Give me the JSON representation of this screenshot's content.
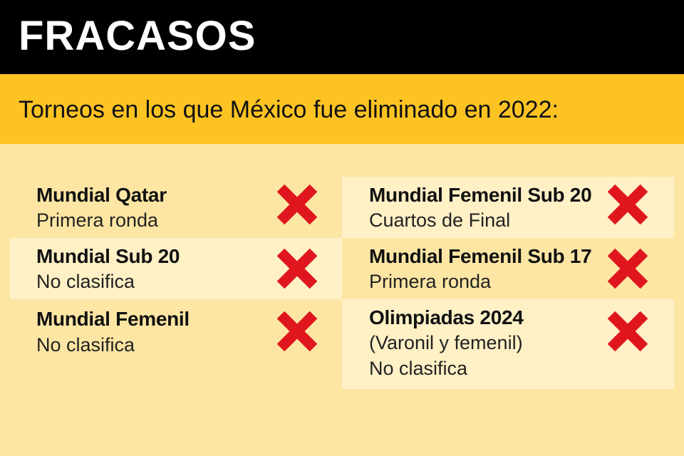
{
  "header": {
    "title": "FRACASOS"
  },
  "subheader": {
    "text": "Torneos en los que México fue eliminado en 2022:"
  },
  "tournaments": [
    {
      "name": "Mundial Qatar",
      "result": "Primera ronda"
    },
    {
      "name": "Mundial Sub 20",
      "result": "No clasifica"
    },
    {
      "name": "Mundial Femenil",
      "result": "No clasifica"
    },
    {
      "name": "Mundial Femenil Sub 20",
      "result": "Cuartos de Final"
    },
    {
      "name": "Mundial Femenil Sub 17",
      "result": "Primera ronda"
    },
    {
      "name": "Olimpiadas 2024",
      "detail": "(Varonil y femenil)",
      "result": "No clasifica"
    }
  ],
  "icons": {
    "status": "cross-icon"
  },
  "colors": {
    "header_bg": "#000000",
    "subheader_bg": "#fdc323",
    "body_bg": "#fde6a4",
    "shaded_panel": "#fff0c6",
    "cross": "#e0161f"
  }
}
